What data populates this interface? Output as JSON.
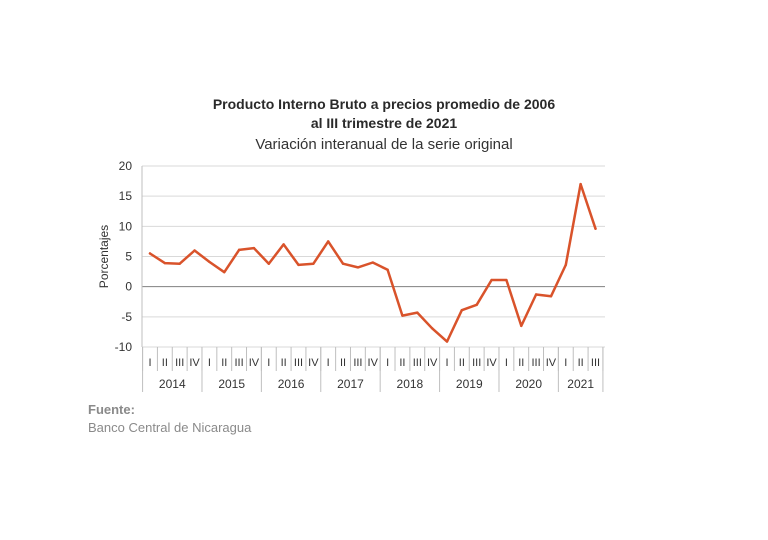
{
  "title_line1": "Producto Interno Bruto a precios promedio de 2006",
  "title_line2": "al III trimestre de 2021",
  "subtitle": "Variación interanual de la serie original",
  "source_label": "Fuente:",
  "source_text": "Banco Central de Nicaragua",
  "colors": {
    "line": "#d9532b",
    "grid": "#d9d9d9",
    "zero": "#808080",
    "text": "#333333"
  },
  "chart_data": {
    "type": "line",
    "title": "Producto Interno Bruto a precios promedio de 2006 al III trimestre de 2021",
    "subtitle": "Variación interanual de la serie original",
    "ylabel": "Porcentajes",
    "xlabel": "",
    "ylim": [
      -10,
      20
    ],
    "yticks": [
      -10,
      -5,
      0,
      5,
      10,
      15,
      20
    ],
    "grid": true,
    "years": [
      "2014",
      "2015",
      "2016",
      "2017",
      "2018",
      "2019",
      "2020",
      "2021"
    ],
    "quarters_per_year": [
      4,
      4,
      4,
      4,
      4,
      4,
      4,
      3
    ],
    "quarter_labels": [
      "I",
      "II",
      "III",
      "IV"
    ],
    "series": [
      {
        "values": [
          5.5,
          3.9,
          3.8,
          6.0,
          4.1,
          2.4,
          6.1,
          6.4,
          3.8,
          7.0,
          3.6,
          3.8,
          7.5,
          3.8,
          3.2,
          4.0,
          2.8,
          -4.8,
          -4.3,
          -6.9,
          -9.1,
          -3.9,
          -3.0,
          1.1,
          1.1,
          -6.5,
          -1.3,
          -1.6,
          3.6,
          17.0,
          9.6
        ]
      }
    ]
  }
}
